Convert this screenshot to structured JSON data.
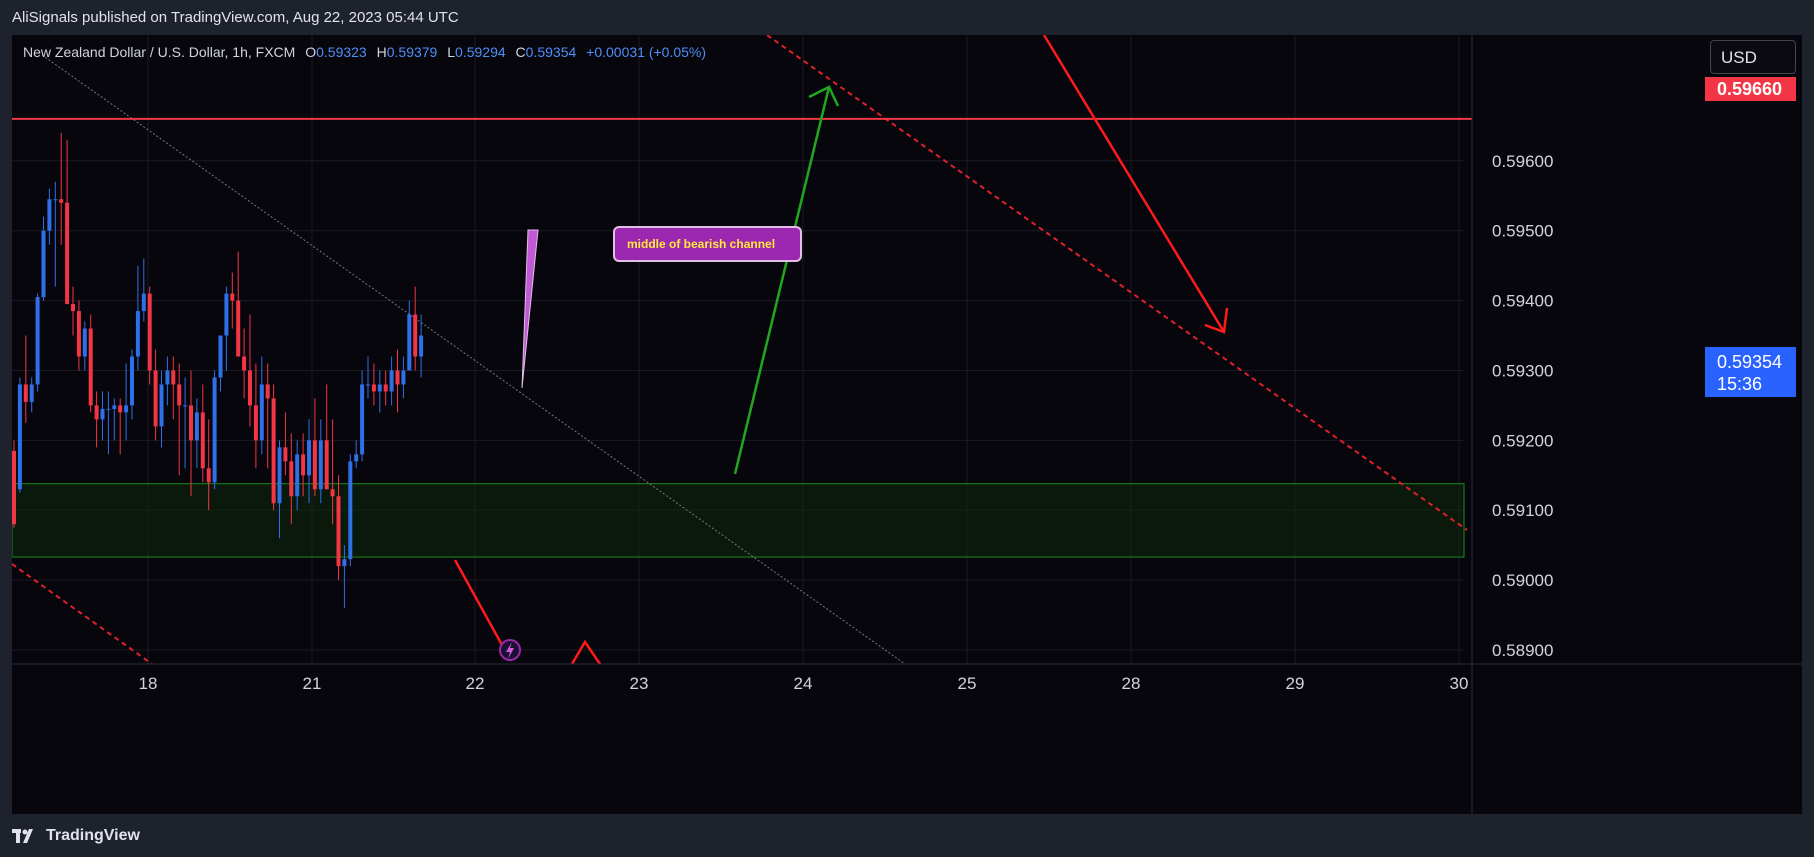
{
  "header": {
    "published": "AliSignals published on TradingView.com, Aug 22, 2023 05:44 UTC"
  },
  "legend": {
    "symbol": "New Zealand Dollar / U.S. Dollar, 1h, FXCM",
    "o_label": "O",
    "o_value": "0.59323",
    "h_label": "H",
    "h_value": "0.59379",
    "l_label": "L",
    "l_value": "0.59294",
    "c_label": "C",
    "c_value": "0.59354",
    "change": "+0.00031 (+0.05%)"
  },
  "currency": "USD",
  "annotation": "middle of bearish channel",
  "last_price": {
    "price": "0.59354",
    "countdown": "15:36"
  },
  "level_label": "0.59660",
  "footer": {
    "brand": "TradingView"
  },
  "colors": {
    "bull": "#2f6fe8",
    "bear": "#f23645",
    "zone": "#1a8a1a",
    "arrow_up": "#1fa81f",
    "arrow_down": "#ff1a1a",
    "callout": "#9c27b0"
  },
  "chart_data": {
    "type": "candlestick",
    "x_ticks": [
      "18",
      "21",
      "22",
      "23",
      "24",
      "25",
      "28",
      "29",
      "30"
    ],
    "y_ticks": [
      "0.59600",
      "0.59500",
      "0.59400",
      "0.59300",
      "0.59200",
      "0.59100",
      "0.59000",
      "0.58900"
    ],
    "ylim": [
      0.5888,
      0.5978
    ],
    "horizontal_line": 0.5966,
    "zone": {
      "low": 0.59033,
      "high": 0.59138
    },
    "ohlc": [
      [
        0.59185,
        0.592,
        0.59075,
        0.5908
      ],
      [
        0.5913,
        0.5929,
        0.59125,
        0.5928
      ],
      [
        0.5928,
        0.5935,
        0.59225,
        0.59255
      ],
      [
        0.59255,
        0.5929,
        0.5924,
        0.5928
      ],
      [
        0.5928,
        0.5941,
        0.5927,
        0.59405
      ],
      [
        0.59405,
        0.5952,
        0.594,
        0.595
      ],
      [
        0.595,
        0.5956,
        0.5948,
        0.59545
      ],
      [
        0.59545,
        0.5957,
        0.5942,
        0.59545
      ],
      [
        0.59545,
        0.5964,
        0.5948,
        0.5954
      ],
      [
        0.5954,
        0.5963,
        0.59395,
        0.59395
      ],
      [
        0.59395,
        0.5942,
        0.5935,
        0.59385
      ],
      [
        0.59385,
        0.594,
        0.593,
        0.5932
      ],
      [
        0.5932,
        0.5937,
        0.593,
        0.5936
      ],
      [
        0.5936,
        0.5938,
        0.5924,
        0.5925
      ],
      [
        0.5925,
        0.5927,
        0.5919,
        0.5923
      ],
      [
        0.5923,
        0.5927,
        0.592,
        0.59245
      ],
      [
        0.59245,
        0.5927,
        0.5918,
        0.59245
      ],
      [
        0.59245,
        0.5926,
        0.592,
        0.5925
      ],
      [
        0.5925,
        0.5926,
        0.5918,
        0.5924
      ],
      [
        0.5924,
        0.5931,
        0.592,
        0.5925
      ],
      [
        0.5925,
        0.5933,
        0.5923,
        0.5932
      ],
      [
        0.5932,
        0.5945,
        0.593,
        0.59385
      ],
      [
        0.59385,
        0.5946,
        0.5937,
        0.5941
      ],
      [
        0.5941,
        0.5942,
        0.5928,
        0.593
      ],
      [
        0.593,
        0.5933,
        0.592,
        0.5922
      ],
      [
        0.5922,
        0.593,
        0.5919,
        0.5928
      ],
      [
        0.5928,
        0.5932,
        0.5925,
        0.593
      ],
      [
        0.593,
        0.5932,
        0.5923,
        0.5928
      ],
      [
        0.5928,
        0.5931,
        0.5915,
        0.5925
      ],
      [
        0.5925,
        0.5929,
        0.5916,
        0.5925
      ],
      [
        0.5925,
        0.593,
        0.5912,
        0.592
      ],
      [
        0.592,
        0.5926,
        0.5916,
        0.5924
      ],
      [
        0.5924,
        0.5928,
        0.5914,
        0.5916
      ],
      [
        0.5916,
        0.5923,
        0.591,
        0.5914
      ],
      [
        0.5914,
        0.593,
        0.5913,
        0.5929
      ],
      [
        0.5929,
        0.5935,
        0.5927,
        0.5935
      ],
      [
        0.5935,
        0.5942,
        0.593,
        0.5941
      ],
      [
        0.5941,
        0.5944,
        0.5936,
        0.594
      ],
      [
        0.594,
        0.5947,
        0.5932,
        0.5932
      ],
      [
        0.5932,
        0.5936,
        0.5926,
        0.593
      ],
      [
        0.593,
        0.5938,
        0.5922,
        0.5925
      ],
      [
        0.5925,
        0.5931,
        0.5916,
        0.592
      ],
      [
        0.592,
        0.5932,
        0.5918,
        0.5928
      ],
      [
        0.5928,
        0.5931,
        0.5916,
        0.5926
      ],
      [
        0.5926,
        0.5928,
        0.591,
        0.5911
      ],
      [
        0.5911,
        0.592,
        0.5906,
        0.5919
      ],
      [
        0.5919,
        0.5924,
        0.5915,
        0.5917
      ],
      [
        0.5917,
        0.5921,
        0.5908,
        0.5912
      ],
      [
        0.5912,
        0.592,
        0.591,
        0.5918
      ],
      [
        0.5918,
        0.5921,
        0.5912,
        0.5915
      ],
      [
        0.5915,
        0.5923,
        0.5911,
        0.592
      ],
      [
        0.592,
        0.5926,
        0.5912,
        0.5913
      ],
      [
        0.5913,
        0.5923,
        0.5911,
        0.592
      ],
      [
        0.592,
        0.5928,
        0.5913,
        0.5913
      ],
      [
        0.5913,
        0.5923,
        0.5908,
        0.5912
      ],
      [
        0.5912,
        0.5915,
        0.59,
        0.5902
      ],
      [
        0.5902,
        0.5905,
        0.5896,
        0.5903
      ],
      [
        0.5903,
        0.5918,
        0.5902,
        0.5917
      ],
      [
        0.5917,
        0.592,
        0.5916,
        0.5918
      ],
      [
        0.5918,
        0.593,
        0.5917,
        0.5928
      ],
      [
        0.5928,
        0.5932,
        0.5926,
        0.5928
      ],
      [
        0.5928,
        0.5931,
        0.5925,
        0.5927
      ],
      [
        0.5927,
        0.593,
        0.5924,
        0.5928
      ],
      [
        0.5928,
        0.593,
        0.5925,
        0.5927
      ],
      [
        0.5927,
        0.5932,
        0.5925,
        0.593
      ],
      [
        0.593,
        0.5933,
        0.5924,
        0.5928
      ],
      [
        0.5928,
        0.5932,
        0.5926,
        0.593
      ],
      [
        0.593,
        0.594,
        0.593,
        0.5938
      ],
      [
        0.5938,
        0.5942,
        0.593,
        0.5932
      ],
      [
        0.5932,
        0.5938,
        0.5929,
        0.5935
      ]
    ]
  }
}
